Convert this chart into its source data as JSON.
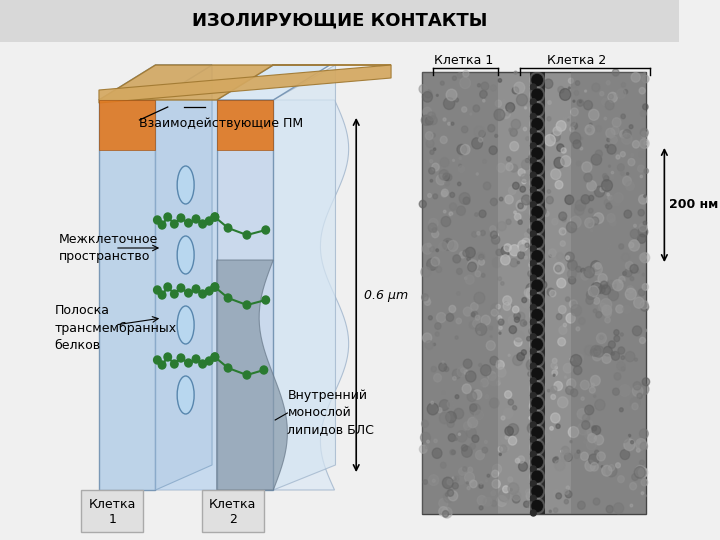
{
  "title": "ИЗОЛИРУЮЩИЕ КОНТАКТЫ",
  "title_fontsize": 13,
  "title_bg_color": "#d8d8d8",
  "bg_color": "#f0f0f0",
  "labels": {
    "vzaimod": "Взаимодействующие ПМ",
    "mezhklet": "Межклеточное\nпространство",
    "poloska": "Полоска\nтрансмембранных\nбелков",
    "vnutr": "Внутренний\nмонослой\nлипидов БЛС",
    "kletka1": "Клетка\n1",
    "kletka2": "Клетка\n2",
    "kletka1_right": "Клетка 1",
    "kletka2_right": "Клетка 2",
    "scale": "200 нм",
    "scale2": "0.6 μm"
  },
  "cell_color1": "#b8d0e8",
  "cell_color2": "#c8d8ec",
  "membrane_top_color": "#d4a860",
  "membrane_orange_color": "#e07820",
  "green_color": "#2a7a30",
  "em_bg_color": "#888888"
}
